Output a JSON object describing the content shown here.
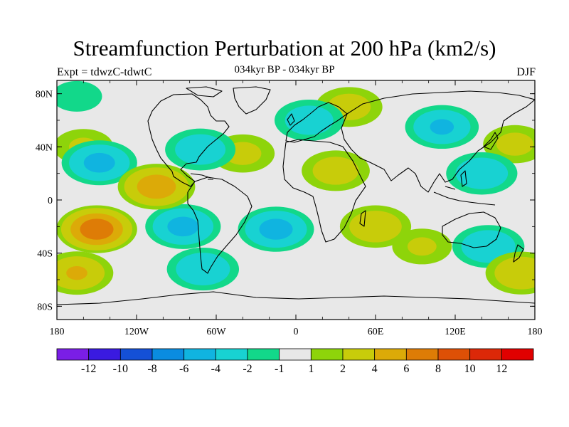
{
  "header": {
    "title": "Streamfunction Perturbation at 200 hPa (km2/s)",
    "subtitle": "034kyr BP - 034kyr BP",
    "left_label": "Expt = tdwzC-tdwtC",
    "right_label": "DJF"
  },
  "map": {
    "projection": "cylindrical-equidistant",
    "lon_range": [
      -180,
      180
    ],
    "lat_range": [
      -90,
      90
    ],
    "background_color": "#e8e8e8",
    "coastline_color": "#000000",
    "lat_ticks": [
      {
        "value": 80,
        "label": "80N"
      },
      {
        "value": 40,
        "label": "40N"
      },
      {
        "value": 0,
        "label": "0"
      },
      {
        "value": -40,
        "label": "40S"
      },
      {
        "value": -80,
        "label": "80S"
      }
    ],
    "lon_ticks": [
      {
        "value": -180,
        "label": "180"
      },
      {
        "value": -120,
        "label": "120W"
      },
      {
        "value": -60,
        "label": "60W"
      },
      {
        "value": 0,
        "label": "0"
      },
      {
        "value": 60,
        "label": "60E"
      },
      {
        "value": 120,
        "label": "120E"
      },
      {
        "value": 180,
        "label": "180"
      }
    ],
    "anomalies": [
      {
        "lon": -165,
        "lat": 78,
        "amp": -1.6
      },
      {
        "lon": -160,
        "lat": 40,
        "amp": 2.2
      },
      {
        "lon": -148,
        "lat": 28,
        "amp": -5.0
      },
      {
        "lon": -105,
        "lat": 10,
        "amp": 5.8
      },
      {
        "lon": -150,
        "lat": -22,
        "amp": 8.0
      },
      {
        "lon": -165,
        "lat": -55,
        "amp": 4.2
      },
      {
        "lon": -85,
        "lat": -20,
        "amp": -5.0
      },
      {
        "lon": -70,
        "lat": -52,
        "amp": -4.0
      },
      {
        "lon": -72,
        "lat": 38,
        "amp": -3.6
      },
      {
        "lon": -40,
        "lat": 35,
        "amp": 2.6
      },
      {
        "lon": -15,
        "lat": -22,
        "amp": -5.2
      },
      {
        "lon": 10,
        "lat": 60,
        "amp": -3.4
      },
      {
        "lon": 40,
        "lat": 70,
        "amp": 3.0
      },
      {
        "lon": 30,
        "lat": 22,
        "amp": 3.2
      },
      {
        "lon": 60,
        "lat": -20,
        "amp": 3.8
      },
      {
        "lon": 110,
        "lat": 55,
        "amp": -4.4
      },
      {
        "lon": 140,
        "lat": 20,
        "amp": -3.8
      },
      {
        "lon": 165,
        "lat": 42,
        "amp": 2.6
      },
      {
        "lon": 145,
        "lat": -35,
        "amp": -4.0
      },
      {
        "lon": 170,
        "lat": -55,
        "amp": 4.0
      },
      {
        "lon": 95,
        "lat": -35,
        "amp": 2.2
      }
    ]
  },
  "colorbar": {
    "colors": [
      "#7a1ee6",
      "#3a1ae0",
      "#1450d6",
      "#0a8ce0",
      "#10b4e0",
      "#18d2d2",
      "#12d88a",
      "#e8e8e8",
      "#8ed40a",
      "#c8cc0a",
      "#dcaa08",
      "#de7c06",
      "#de5006",
      "#dc2808",
      "#e00000"
    ],
    "levels": [
      "-12",
      "-10",
      "-8",
      "-6",
      "-4",
      "-2",
      "-1",
      "1",
      "2",
      "4",
      "6",
      "8",
      "10",
      "12"
    ],
    "thresholds": [
      -12,
      -10,
      -8,
      -6,
      -4,
      -2,
      -1,
      1,
      2,
      4,
      6,
      8,
      10,
      12
    ]
  }
}
